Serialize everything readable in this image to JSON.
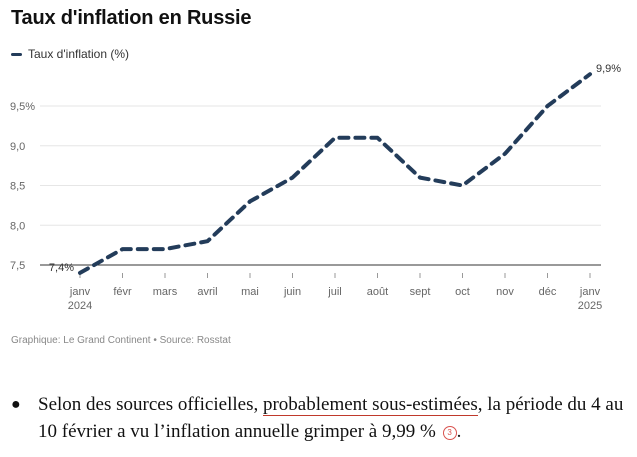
{
  "article": {
    "bullet_before": "Selon des sources officielles, ",
    "bullet_link": "probablement sous-estimées",
    "bullet_after": ", la période du 4 au 10 février a vu l’inflation annuelle grimper à 9,99 %",
    "footnote": "3",
    "bullet_glyph": "●"
  },
  "chart_data": {
    "type": "line",
    "title": "Taux d'inflation en Russie",
    "legend": "Taux d'inflation (%)",
    "source": "Graphique: Le Grand Continent • Source: Rosstat",
    "categories": [
      "janv\n2024",
      "févr",
      "mars",
      "avril",
      "mai",
      "juin",
      "juil",
      "août",
      "sept",
      "oct",
      "nov",
      "déc",
      "janv\n2025"
    ],
    "series": [
      {
        "name": "Taux d'inflation (%)",
        "values": [
          7.4,
          7.7,
          7.7,
          7.8,
          8.3,
          8.6,
          9.1,
          9.1,
          8.6,
          8.5,
          8.9,
          9.5,
          9.9
        ]
      }
    ],
    "ylim": [
      7.5,
      9.9
    ],
    "yticks": [
      7.5,
      8.0,
      8.5,
      9.0,
      9.5
    ],
    "ytick_labels": [
      "7,5",
      "8,0",
      "8,5",
      "9,0",
      "9,5%"
    ],
    "annotations": {
      "first": "7,4%",
      "last": "9,9%"
    },
    "xlabel": "",
    "ylabel": "",
    "grid": true,
    "colors": {
      "line": "#233c5a",
      "grid": "#e6e6e6",
      "axis": "#333333",
      "tick_text": "#666666"
    }
  }
}
